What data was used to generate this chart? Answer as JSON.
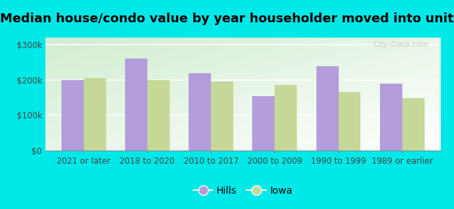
{
  "title": "Median house/condo value by year householder moved into unit",
  "categories": [
    "2021 or later",
    "2018 to 2020",
    "2010 to 2017",
    "2000 to 2009",
    "1990 to 1999",
    "1989 or earlier"
  ],
  "hills_values": [
    200000,
    260000,
    220000,
    155000,
    240000,
    190000
  ],
  "iowa_values": [
    205000,
    200000,
    195000,
    185000,
    165000,
    148000
  ],
  "hills_color": "#b39ddb",
  "iowa_color": "#c5d898",
  "background_color": "#00e8e8",
  "ylabel_ticks": [
    0,
    100000,
    200000,
    300000
  ],
  "ylim": [
    0,
    320000
  ],
  "bar_width": 0.35,
  "legend_labels": [
    "Hills",
    "Iowa"
  ],
  "title_fontsize": 13,
  "tick_fontsize": 8.5,
  "watermark": "City-Data.com"
}
